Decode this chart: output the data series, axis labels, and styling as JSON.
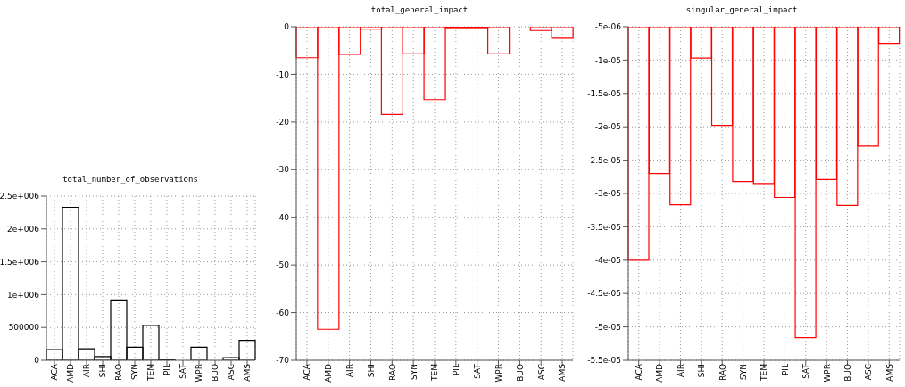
{
  "chart_data": [
    {
      "type": "bar",
      "title": "total_number_of_observations",
      "categories": [
        "ACA",
        "AMD",
        "AIR",
        "SHI",
        "RAO",
        "SYN",
        "TEM",
        "PIL",
        "SAT",
        "WPR",
        "BUO",
        "ASC",
        "AMS"
      ],
      "series": [
        {
          "color": "#000000",
          "values": [
            160000,
            2330000,
            175000,
            55000,
            920000,
            200000,
            530000,
            5000,
            0,
            200000,
            0,
            40000,
            305000
          ]
        }
      ],
      "ylim": [
        0,
        2500000
      ],
      "yticks": [
        0,
        500000,
        {
          "value": 1000000,
          "label": "1e+006"
        },
        {
          "value": 1500000,
          "label": "1.5e+006"
        },
        {
          "value": 2000000,
          "label": "2e+006"
        },
        {
          "value": 2500000,
          "label": "2.5e+006"
        }
      ],
      "grid": true
    },
    {
      "type": "bar",
      "title": "total_general_impact",
      "categories": [
        "ACA",
        "AMD",
        "AIR",
        "SHI",
        "RAO",
        "SYN",
        "TEM",
        "PIL",
        "SAT",
        "WPR",
        "BUO",
        "ASC",
        "AMS"
      ],
      "series": [
        {
          "color": "#ff0000",
          "values": [
            -6.5,
            -63.5,
            -5.8,
            -0.5,
            -18.4,
            -5.7,
            -15.3,
            -0.2,
            -0.2,
            -5.7,
            0,
            -0.8,
            -2.4
          ]
        }
      ],
      "ylim": [
        -70,
        0
      ],
      "yticks": [
        -70,
        -60,
        -50,
        -40,
        -30,
        -20,
        -10,
        0
      ],
      "grid": true
    },
    {
      "type": "bar",
      "title": "singular_general_impact",
      "categories": [
        "ACA",
        "AMD",
        "AIR",
        "SHI",
        "RAO",
        "SYN",
        "TEM",
        "PIL",
        "SAT",
        "WPR",
        "BUO",
        "ASC",
        "AMS"
      ],
      "series": [
        {
          "color": "#ff0000",
          "values": [
            -4e-05,
            -2.7e-05,
            -3.17e-05,
            -9.7e-06,
            -1.98e-05,
            -2.82e-05,
            -2.85e-05,
            -3.06e-05,
            -5.16e-05,
            -2.79e-05,
            -3.18e-05,
            -2.29e-05,
            -7.5e-06
          ]
        }
      ],
      "ylim": [
        -5.5e-05,
        -5e-06
      ],
      "yticks": [
        {
          "value": -5.5e-05,
          "label": "-5.5e-05"
        },
        {
          "value": -5e-05,
          "label": "-5e-05"
        },
        {
          "value": -4.5e-05,
          "label": "-4.5e-05"
        },
        {
          "value": -4e-05,
          "label": "-4e-05"
        },
        {
          "value": -3.5e-05,
          "label": "-3.5e-05"
        },
        {
          "value": -3e-05,
          "label": "-3e-05"
        },
        {
          "value": -2.5e-05,
          "label": "-2.5e-05"
        },
        {
          "value": -2e-05,
          "label": "-2e-05"
        },
        {
          "value": -1.5e-05,
          "label": "-1.5e-05"
        },
        {
          "value": -1e-05,
          "label": "-1e-05"
        },
        {
          "value": -5e-06,
          "label": "-5e-06"
        }
      ],
      "grid": true
    }
  ]
}
